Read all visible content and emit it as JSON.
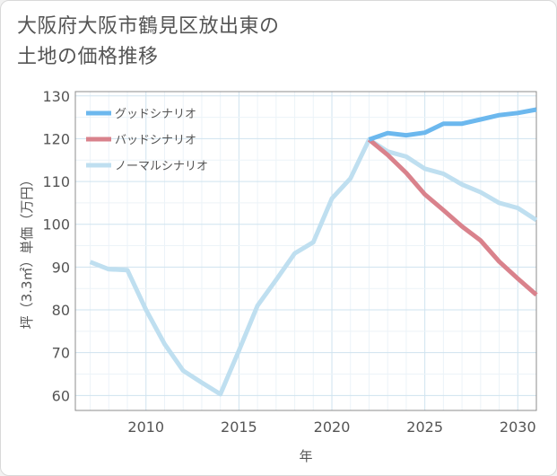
{
  "page": {
    "title_line1": "大阪府大阪市鶴見区放出東の",
    "title_line2": "土地の価格推移"
  },
  "chart_data": {
    "type": "line",
    "xlabel": "年",
    "ylabel": "坪（3.3㎡）単価（万円）",
    "xlim": [
      2006.2,
      2031
    ],
    "ylim": [
      56.5,
      131
    ],
    "x_ticks": [
      2010,
      2015,
      2020,
      2025,
      2030
    ],
    "y_ticks": [
      60,
      70,
      80,
      90,
      100,
      110,
      120,
      130
    ],
    "grid": true,
    "legend_position": "top-left",
    "series": [
      {
        "name": "グッドシナリオ",
        "color": "#6cb8ee",
        "x": [
          2022,
          2023,
          2024,
          2025,
          2026,
          2027,
          2028,
          2029,
          2030,
          2031
        ],
        "y": [
          119.8,
          121.3,
          120.8,
          121.4,
          123.5,
          123.5,
          124.5,
          125.5,
          126,
          126.8
        ]
      },
      {
        "name": "バッドシナリオ",
        "color": "#d9828c",
        "x": [
          2022,
          2023,
          2024,
          2025,
          2026,
          2027,
          2028,
          2029,
          2030,
          2031
        ],
        "y": [
          119.8,
          116.2,
          112,
          107,
          103.3,
          99.5,
          96.2,
          91.3,
          87.3,
          83.5
        ]
      },
      {
        "name": "ノーマルシナリオ",
        "color": "#bfdff0",
        "x": [
          2007,
          2008,
          2009,
          2010,
          2011,
          2012,
          2013,
          2014,
          2015,
          2016,
          2017,
          2018,
          2019,
          2020,
          2021,
          2022,
          2023,
          2024,
          2025,
          2026,
          2027,
          2028,
          2029,
          2030,
          2031
        ],
        "y": [
          91.2,
          89.5,
          89.3,
          80,
          72,
          65.8,
          63,
          60.3,
          70.5,
          81,
          87,
          93.2,
          95.8,
          106,
          110.7,
          119.8,
          117,
          115.8,
          113,
          111.8,
          109.3,
          107.5,
          105,
          103.8,
          101
        ]
      }
    ]
  }
}
